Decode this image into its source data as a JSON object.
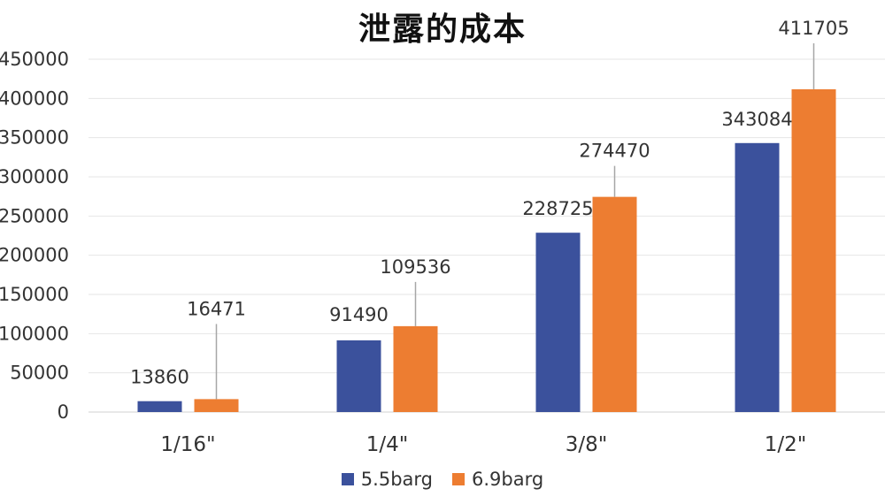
{
  "chart_data": {
    "type": "bar",
    "title": "泄露的成本",
    "categories": [
      "1/16\"",
      "1/4\"",
      "3/8\"",
      "1/2\""
    ],
    "series": [
      {
        "name": "5.5barg",
        "color": "#3b519c",
        "values": [
          13860,
          91490,
          228725,
          343084
        ]
      },
      {
        "name": "6.9barg",
        "color": "#ed7d31",
        "values": [
          16471,
          109536,
          274470,
          411705
        ]
      }
    ],
    "ylim": [
      0,
      450000
    ],
    "yticks": [
      0,
      50000,
      100000,
      150000,
      200000,
      250000,
      300000,
      350000,
      400000,
      450000
    ],
    "grid": true,
    "legend_position": "bottom"
  }
}
